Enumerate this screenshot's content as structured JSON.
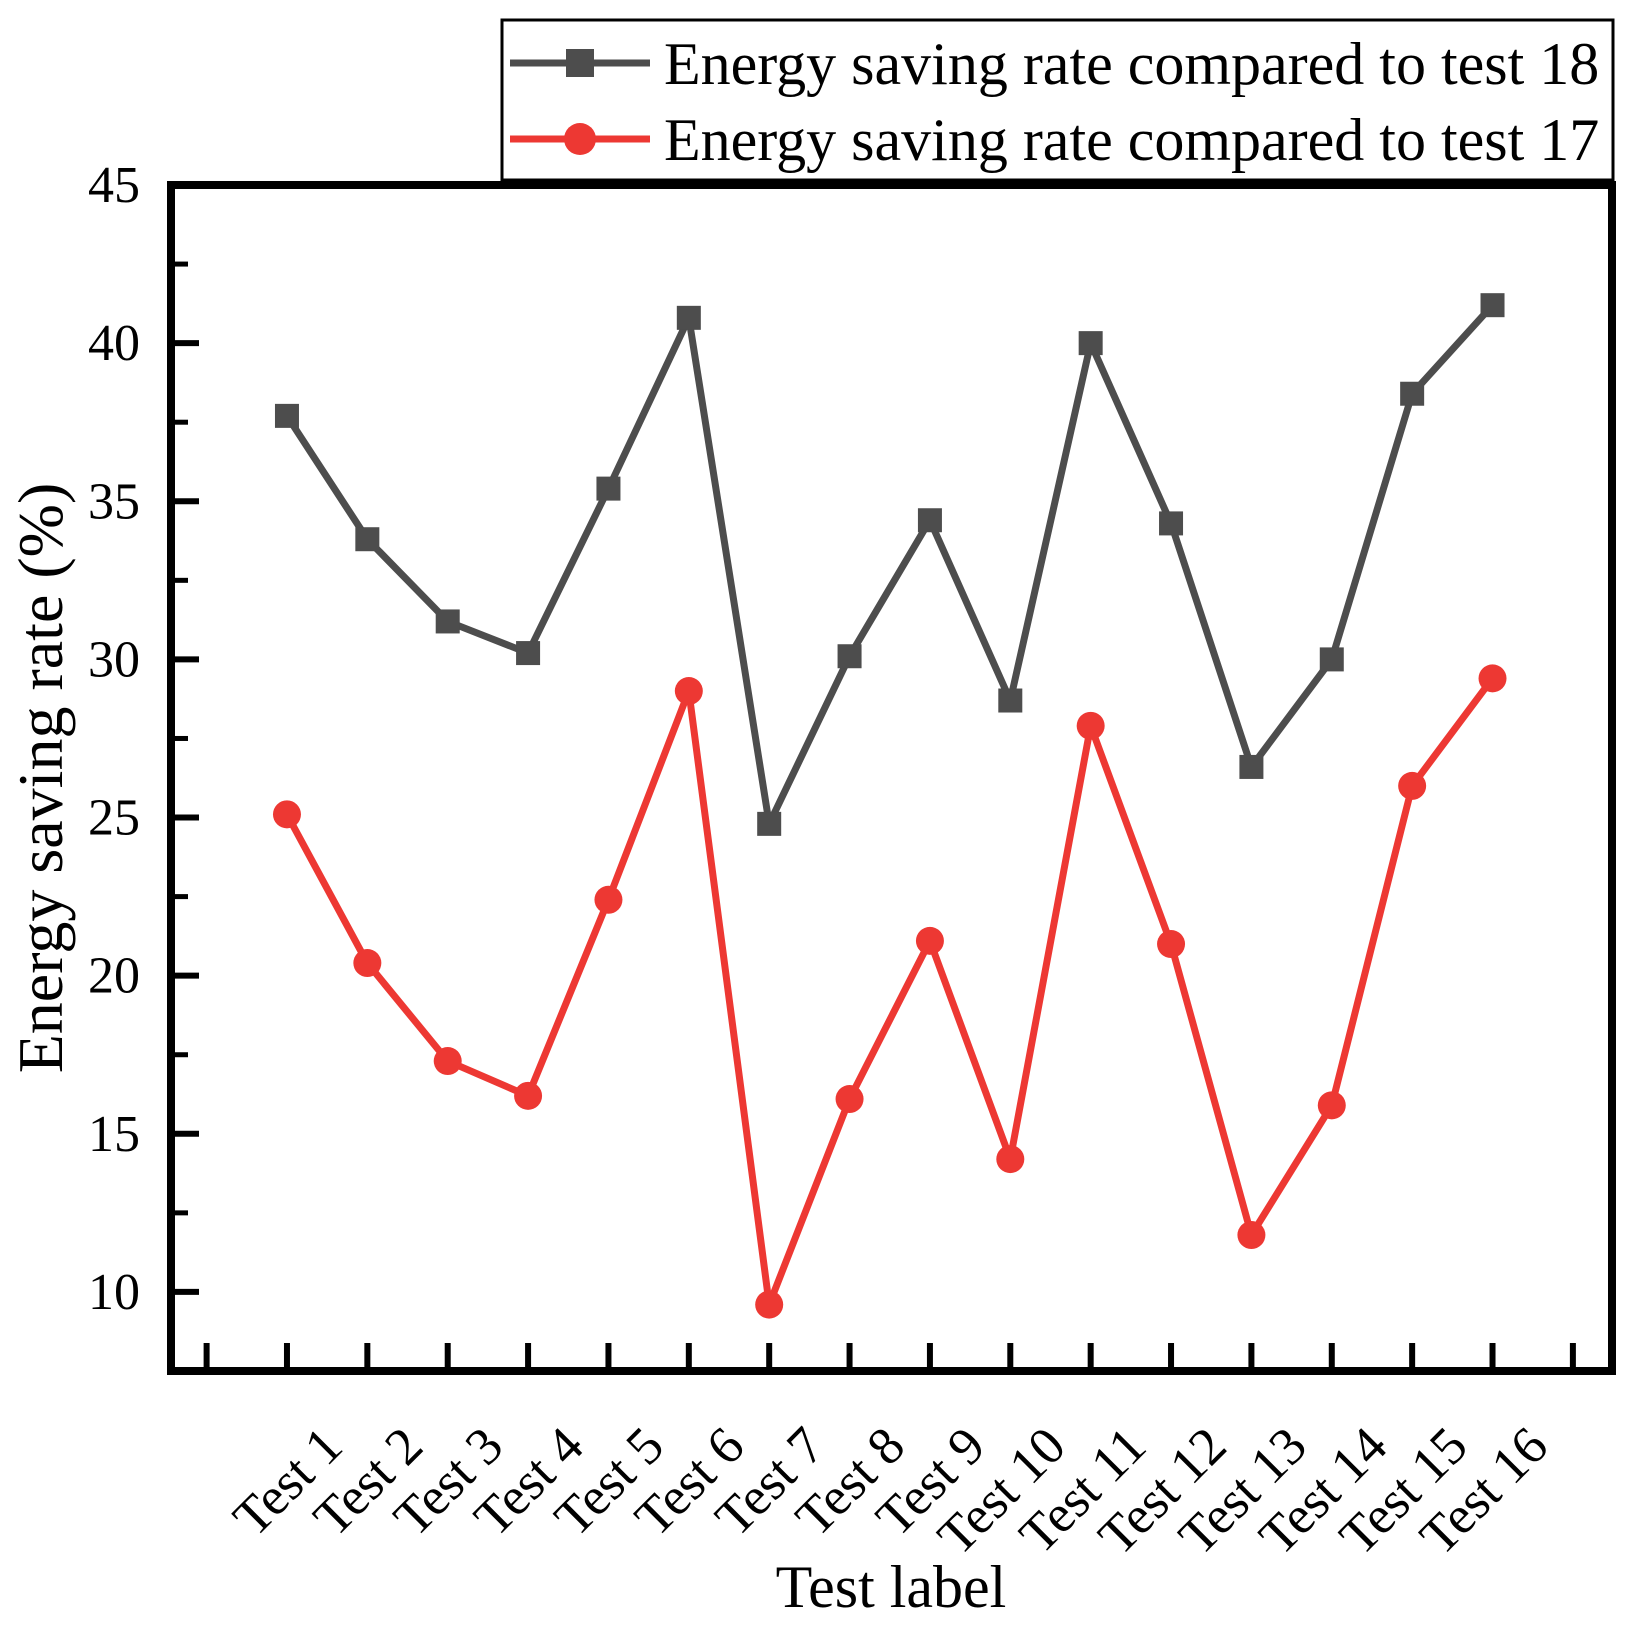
{
  "figure": {
    "background": "#ffffff"
  },
  "chart_data": {
    "type": "line",
    "title": "",
    "xlabel": "Test label",
    "ylabel": "Energy saving rate (%)",
    "categories": [
      "Test 1",
      "Test 2",
      "Test 3",
      "Test 4",
      "Test 5",
      "Test 6",
      "Test 7",
      "Test 8",
      "Test 9",
      "Test 10",
      "Test 11",
      "Test 12",
      "Test 13",
      "Test 14",
      "Test 15",
      "Test 16"
    ],
    "series": [
      {
        "name": "Energy saving rate compared to test 18",
        "color": "#4d4d4d",
        "marker": "square",
        "values": [
          37.7,
          33.8,
          31.2,
          30.2,
          35.4,
          40.8,
          24.8,
          30.1,
          34.4,
          28.7,
          40.0,
          34.3,
          26.6,
          30.0,
          38.4,
          41.2
        ]
      },
      {
        "name": "Energy saving rate compared to test 17",
        "color": "#ed3833",
        "marker": "circle",
        "values": [
          25.1,
          20.4,
          17.3,
          16.2,
          22.4,
          29.0,
          9.6,
          16.1,
          21.1,
          14.2,
          27.9,
          21.0,
          11.8,
          15.9,
          26.0,
          29.4
        ]
      }
    ],
    "ylim": [
      7.5,
      45
    ],
    "y_major_ticks": [
      10,
      15,
      20,
      25,
      30,
      35,
      40,
      45
    ],
    "y_minor_ticks": [
      12.5,
      17.5,
      22.5,
      27.5,
      32.5,
      37.5,
      42.5
    ],
    "x_tick_label_rotation_deg": 45,
    "grid": false,
    "legend_position": "top",
    "axis_color": "#000000"
  }
}
